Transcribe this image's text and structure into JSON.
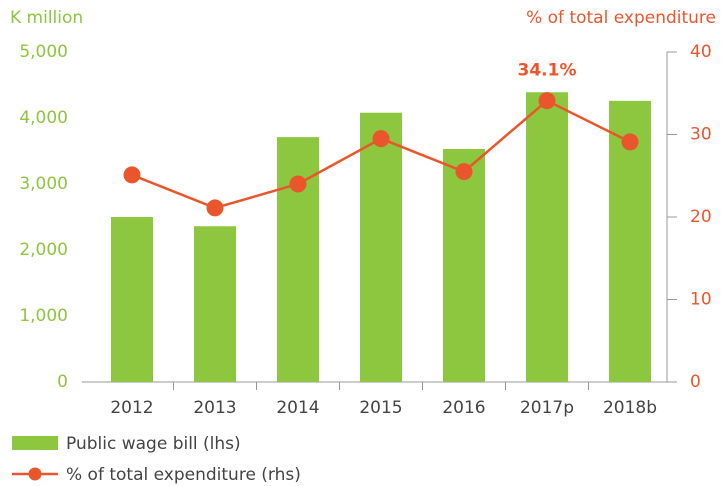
{
  "chart_data": {
    "type": "combo",
    "y_label": "K million",
    "y2_label": "% of total expenditure",
    "categories": [
      "2012",
      "2013",
      "2014",
      "2015",
      "2016",
      "2017p",
      "2018b"
    ],
    "series": [
      {
        "name": "Public wage bill (lhs)",
        "type": "bar",
        "color": "#8dc63f",
        "axis": "y",
        "values": [
          2500,
          2360,
          3710,
          4080,
          3530,
          4390,
          4260
        ]
      },
      {
        "name": "% of total expenditure (rhs)",
        "type": "line",
        "color": "#e9562b",
        "axis": "y2",
        "values": [
          25.1,
          21.1,
          24.0,
          29.5,
          25.5,
          34.1,
          29.1
        ],
        "value_labels": [
          null,
          null,
          null,
          null,
          null,
          "34.1%",
          null
        ]
      }
    ],
    "ylim": [
      0,
      5000
    ],
    "yticks": [
      0,
      {
        "value": 1000,
        "label": "1,000"
      },
      {
        "value": 2000,
        "label": "2,000"
      },
      {
        "value": 3000,
        "label": "3,000"
      },
      {
        "value": 4000,
        "label": "4,000"
      },
      {
        "value": 5000,
        "label": "5,000"
      }
    ],
    "y2lim": [
      0,
      40
    ],
    "y2ticks": [
      0,
      10,
      20,
      30,
      40
    ],
    "grid": false,
    "legend": "bottom-left"
  }
}
